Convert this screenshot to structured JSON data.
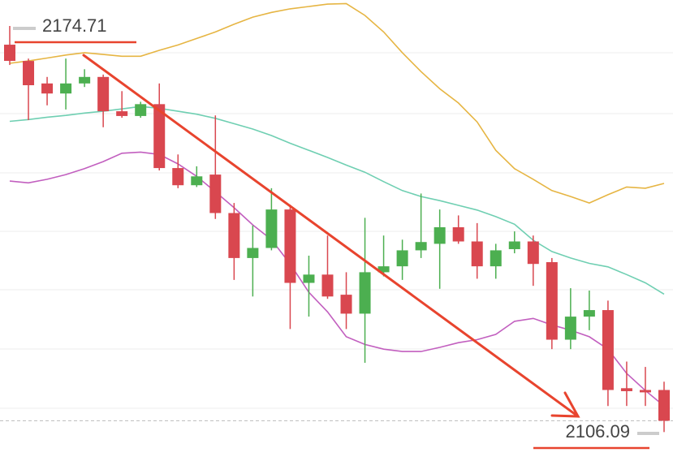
{
  "chart_data": {
    "type": "candlestick",
    "open": [
      2171.55,
      2168.8,
      2165.0,
      2163.3,
      2165.0,
      2166.1,
      2160.3,
      2159.5,
      2161.5,
      2150.7,
      2147.8,
      2149.6,
      2143.1,
      2135.5,
      2137.2,
      2143.7,
      2131.3,
      2132.7,
      2129.3,
      2126.1,
      2133.1,
      2134.1,
      2136.8,
      2137.9,
      2140.7,
      2138.3,
      2134.1,
      2137.0,
      2138.3,
      2134.8,
      2121.7,
      2125.6,
      2126.7,
      2113.5,
      2113.2,
      2113.2
    ],
    "high": [
      2174.71,
      2169.2,
      2166.1,
      2169.2,
      2167.4,
      2166.5,
      2163.7,
      2161.9,
      2165.0,
      2153.0,
      2151.0,
      2159.6,
      2144.8,
      2141.0,
      2147.3,
      2144.5,
      2135.9,
      2139.3,
      2133.1,
      2142.3,
      2139.3,
      2138.6,
      2146.4,
      2143.7,
      2142.7,
      2141.4,
      2137.9,
      2140.0,
      2139.3,
      2135.5,
      2130.4,
      2130.0,
      2128.3,
      2118.0,
      2117.1,
      2114.6
    ],
    "low": [
      2168.12,
      2158.8,
      2161.3,
      2160.6,
      2164.4,
      2157.6,
      2159.2,
      2159.2,
      2150.3,
      2147.3,
      2147.5,
      2142.1,
      2131.8,
      2129.0,
      2136.8,
      2123.5,
      2125.6,
      2128.6,
      2123.5,
      2117.8,
      2132.4,
      2131.8,
      2135.5,
      2130.3,
      2137.9,
      2132.0,
      2132.0,
      2136.3,
      2130.8,
      2120.1,
      2120.1,
      2123.3,
      2110.5,
      2110.5,
      2110.5,
      2106.09
    ],
    "close": [
      2168.81,
      2164.7,
      2163.3,
      2165.0,
      2166.1,
      2160.3,
      2159.5,
      2161.5,
      2150.7,
      2147.8,
      2149.3,
      2143.1,
      2135.5,
      2137.2,
      2143.7,
      2131.3,
      2132.7,
      2129.0,
      2126.1,
      2133.1,
      2134.1,
      2136.8,
      2138.2,
      2140.7,
      2138.3,
      2134.1,
      2136.8,
      2138.3,
      2134.5,
      2121.7,
      2125.6,
      2126.7,
      2113.2,
      2113.0,
      2112.8,
      2108.0
    ],
    "up_color": "#4caf50",
    "down_color": "#d9474f",
    "series": [
      {
        "color": "#e6b543",
        "values": [
          2168.4,
          2168.8,
          2169.3,
          2169.8,
          2170.2,
          2169.9,
          2169.6,
          2169.6,
          2170.6,
          2171.5,
          2172.6,
          2173.7,
          2175.0,
          2176.2,
          2177.0,
          2177.6,
          2178.0,
          2178.4,
          2178.5,
          2176.5,
          2173.7,
          2170.2,
          2167.0,
          2164.1,
          2161.7,
          2158.5,
          2153.7,
          2150.6,
          2148.8,
          2146.9,
          2145.9,
          2144.8,
          2146.2,
          2147.5,
          2147.3,
          2148.1
        ]
      },
      {
        "color": "#6fcfb2",
        "values": [
          2158.6,
          2158.9,
          2159.3,
          2159.6,
          2160.0,
          2160.3,
          2160.7,
          2161.1,
          2160.8,
          2160.3,
          2159.8,
          2159.1,
          2158.2,
          2157.3,
          2156.2,
          2154.9,
          2153.7,
          2152.5,
          2151.2,
          2150.0,
          2148.4,
          2146.9,
          2145.9,
          2145.2,
          2144.4,
          2143.6,
          2142.5,
          2141.2,
          2138.5,
          2136.6,
          2135.5,
          2134.6,
          2134.0,
          2132.7,
          2131.3,
          2129.4
        ]
      },
      {
        "color": "#c25fbf",
        "values": [
          2148.5,
          2148.2,
          2148.8,
          2149.6,
          2150.6,
          2151.8,
          2153.2,
          2153.4,
          2153.0,
          2151.4,
          2149.3,
          2146.7,
          2144.0,
          2141.1,
          2138.6,
          2134.5,
          2129.7,
          2126.4,
          2122.2,
          2120.9,
          2120.1,
          2119.7,
          2119.7,
          2120.4,
          2121.2,
          2121.7,
          2122.6,
          2124.8,
          2125.3,
          2124.2,
          2123.3,
          2122.2,
          2120.1,
          2116.0,
          2113.1,
          2110.5
        ]
      }
    ],
    "ylim": [
      2101.2,
      2179.1
    ]
  }
}
